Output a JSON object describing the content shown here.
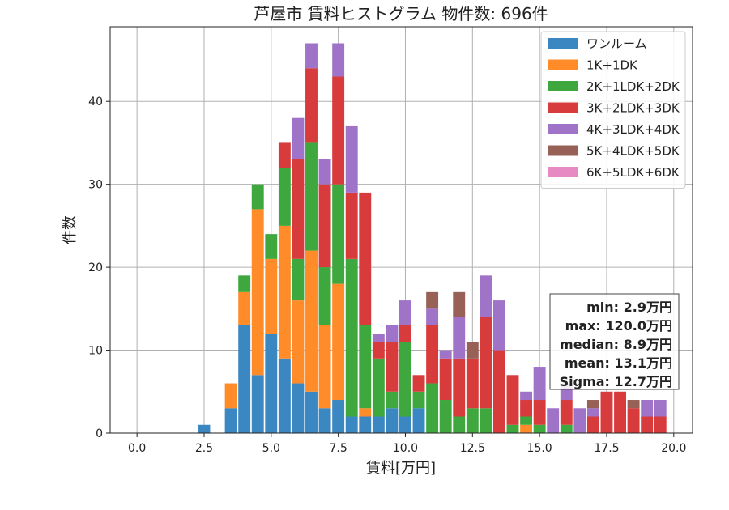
{
  "chart_data": {
    "type": "bar",
    "stacked": true,
    "title": "芦屋市 賃料ヒストグラム  物件数: 696件",
    "xlabel": "賃料[万円]",
    "ylabel": "件数",
    "xlim": [
      -1.0,
      20.7
    ],
    "ylim": [
      0,
      49
    ],
    "xticks": [
      0,
      2.5,
      5,
      7.5,
      10,
      12.5,
      15,
      17.5,
      20
    ],
    "xtick_labels": [
      "0.0",
      "2.5",
      "5.0",
      "7.5",
      "10.0",
      "12.5",
      "15.0",
      "17.5",
      "20.0"
    ],
    "yticks": [
      0,
      10,
      20,
      30,
      40
    ],
    "ytick_labels": [
      "0",
      "10",
      "20",
      "30",
      "40"
    ],
    "grid": true,
    "legend_position": "top-right",
    "bin_width": 0.5,
    "x": [
      2.5,
      3.5,
      4.0,
      4.5,
      5.0,
      5.5,
      6.0,
      6.5,
      7.0,
      7.5,
      8.0,
      8.5,
      9.0,
      9.5,
      10.0,
      10.5,
      11.0,
      11.5,
      12.0,
      12.5,
      13.0,
      13.5,
      14.0,
      14.5,
      15.0,
      15.5,
      16.0,
      16.5,
      17.0,
      17.5,
      18.0,
      18.5,
      19.0,
      19.5
    ],
    "series": [
      {
        "name": "ワンルーム",
        "color": "#3a87c2",
        "values": [
          1,
          3,
          13,
          7,
          12,
          9,
          6,
          5,
          3,
          4,
          2,
          2,
          2,
          3,
          2,
          3,
          0,
          0,
          0,
          0,
          0,
          0,
          0,
          0,
          0,
          0,
          0,
          0,
          0,
          0,
          0,
          0,
          0,
          0
        ]
      },
      {
        "name": "1K+1DK",
        "color": "#ff8c29",
        "values": [
          0,
          3,
          4,
          20,
          9,
          16,
          10,
          17,
          10,
          14,
          0,
          1,
          0,
          0,
          0,
          0,
          0,
          0,
          0,
          0,
          0,
          0,
          0,
          1,
          0,
          0,
          0,
          0,
          0,
          0,
          0,
          0,
          0,
          0
        ]
      },
      {
        "name": "2K+1LDK+2DK",
        "color": "#3ea83e",
        "values": [
          0,
          0,
          2,
          3,
          3,
          7,
          5,
          13,
          7,
          12,
          19,
          10,
          7,
          2,
          9,
          2,
          6,
          4,
          2,
          3,
          3,
          0,
          1,
          1,
          1,
          0,
          1,
          0,
          0,
          0,
          0,
          0,
          0,
          0
        ]
      },
      {
        "name": "3K+2LDK+3DK",
        "color": "#d83b3b",
        "values": [
          0,
          0,
          0,
          0,
          0,
          3,
          12,
          9,
          10,
          13,
          8,
          16,
          2,
          6,
          2,
          2,
          7,
          5,
          7,
          6,
          11,
          10,
          6,
          2,
          3,
          0,
          3,
          0,
          2,
          5,
          5,
          3,
          2,
          2
        ]
      },
      {
        "name": "4K+3LDK+4DK",
        "color": "#9f73c8",
        "values": [
          0,
          0,
          0,
          0,
          0,
          0,
          5,
          3,
          3,
          4,
          8,
          0,
          1,
          2,
          3,
          0,
          2,
          1,
          5,
          0,
          5,
          6,
          0,
          1,
          4,
          3,
          2,
          3,
          1,
          0,
          0,
          0,
          2,
          2
        ]
      },
      {
        "name": "5K+4LDK+5DK",
        "color": "#986158",
        "values": [
          0,
          0,
          0,
          0,
          0,
          0,
          0,
          0,
          0,
          0,
          0,
          0,
          0,
          0,
          0,
          0,
          2,
          0,
          3,
          2,
          0,
          0,
          0,
          0,
          0,
          0,
          0,
          0,
          1,
          0,
          0,
          1,
          0,
          0
        ]
      },
      {
        "name": "6K+5LDK+6DK",
        "color": "#e78ac3",
        "values": [
          0,
          0,
          0,
          0,
          0,
          0,
          0,
          0,
          0,
          0,
          0,
          0,
          0,
          0,
          0,
          0,
          0,
          0,
          0,
          0,
          0,
          0,
          0,
          0,
          0,
          0,
          0,
          0,
          0,
          0,
          0,
          0,
          0,
          0
        ]
      }
    ],
    "annotation": [
      "min: 2.9万円",
      "max: 120.0万円",
      "median: 8.9万円",
      "mean: 13.1万円",
      "Sigma: 12.7万円"
    ]
  }
}
